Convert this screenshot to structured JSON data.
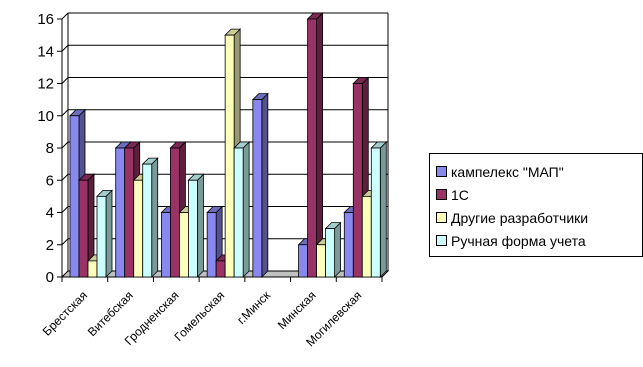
{
  "chart_data": {
    "type": "bar",
    "style": "3d-clustered",
    "categories": [
      "Брестская",
      "Витебская",
      "Гродненская",
      "Гомельская",
      "г.Минск",
      "Минская",
      "Могилевская"
    ],
    "series": [
      {
        "name": "кампелекс \"МАП\"",
        "color": "#8888ee",
        "values": [
          10,
          8,
          4,
          4,
          11,
          2,
          4
        ]
      },
      {
        "name": "1С",
        "color": "#993366",
        "values": [
          6,
          8,
          8,
          1,
          0,
          16,
          12
        ]
      },
      {
        "name": "Другие разработчики",
        "color": "#ffffbb",
        "values": [
          1,
          6,
          4,
          15,
          0,
          2,
          5
        ]
      },
      {
        "name": "Ручная форма учета",
        "color": "#ccffff",
        "values": [
          5,
          7,
          6,
          8,
          0,
          3,
          8
        ]
      }
    ],
    "ylim": [
      0,
      16
    ],
    "yticks": [
      0,
      2,
      4,
      6,
      8,
      10,
      12,
      14,
      16
    ],
    "grid": true,
    "legend_position": "right",
    "xlabel": "",
    "ylabel": "",
    "title": ""
  }
}
